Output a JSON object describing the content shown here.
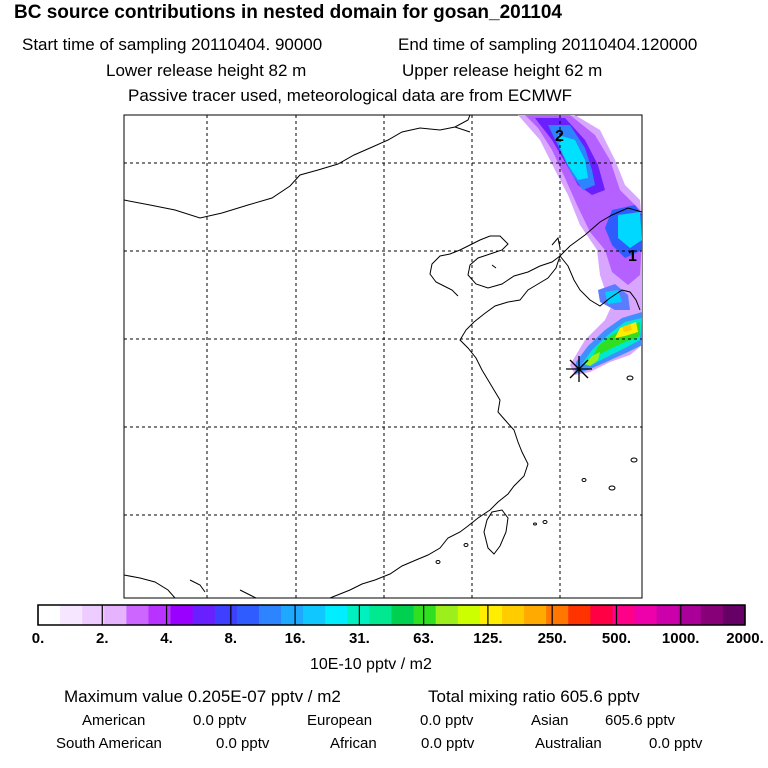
{
  "header": {
    "title": "BC  source contributions in nested domain for gosan_201104",
    "start_time": "Start time of sampling 20110404. 90000",
    "end_time": "End time of sampling 20110404.120000",
    "lower_height": "Lower release height   82 m",
    "upper_height": "Upper release height   62 m",
    "tracer_note": "Passive tracer used, meteorological data are from ECMWF"
  },
  "map": {
    "contour_labels": [
      "2",
      "1"
    ],
    "receptor_symbol": "star-marker"
  },
  "colorbar": {
    "ticks": [
      "0.",
      "2.",
      "4.",
      "8.",
      "16.",
      "31.",
      "63.",
      "125.",
      "250.",
      "500.",
      "1000.",
      "2000."
    ],
    "colors": [
      "#ffffff",
      "#f7e6ff",
      "#efccff",
      "#e6b3ff",
      "#cc66ff",
      "#b833ff",
      "#9900ff",
      "#6a1fff",
      "#3f3fff",
      "#2e5cff",
      "#2e84ff",
      "#1fa8ff",
      "#10c8ff",
      "#00eeff",
      "#00f0c0",
      "#00e890",
      "#00d050",
      "#30e020",
      "#9cef1a",
      "#ccff00",
      "#ffee00",
      "#ffcc00",
      "#ffaa00",
      "#ff7700",
      "#ff3300",
      "#ff0044",
      "#ff0088",
      "#ee00aa",
      "#cc00aa",
      "#aa0099",
      "#880077",
      "#660066"
    ],
    "unit": "10E-10 pptv / m2"
  },
  "summary": {
    "maximum_value": "Maximum value  0.205E-07 pptv / m2",
    "total_mixing_ratio": "Total mixing ratio      605.6 pptv",
    "rows": [
      [
        {
          "label": "American",
          "value": "0.0 pptv"
        },
        {
          "label": "European",
          "value": "0.0 pptv"
        },
        {
          "label": "Asian",
          "value": "605.6 pptv"
        }
      ],
      [
        {
          "label": "South American",
          "value": "0.0 pptv"
        },
        {
          "label": "African",
          "value": "0.0 pptv"
        },
        {
          "label": "Australian",
          "value": "0.0 pptv"
        }
      ]
    ]
  }
}
